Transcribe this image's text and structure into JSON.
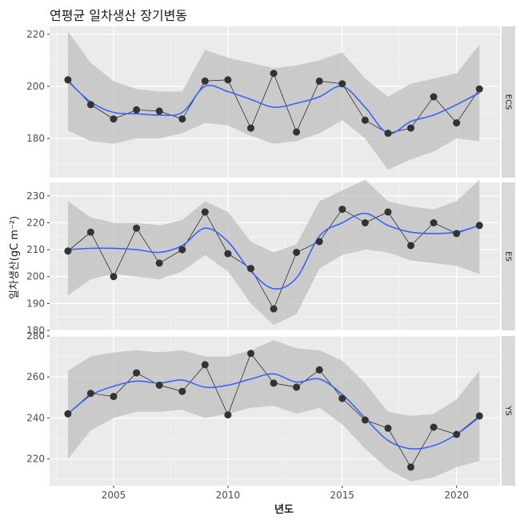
{
  "chart_data": {
    "type": "line",
    "title": "연평균 일차생산 장기변동",
    "xlabel": "년도",
    "ylabel": "일차생산(gC m⁻²)",
    "x_ticks": [
      2005,
      2010,
      2015,
      2020
    ],
    "xlim": [
      2002.2,
      2021.9
    ],
    "grid": true,
    "facets": [
      {
        "strip": "ECS",
        "ylim": [
          165,
          223
        ],
        "y_ticks": [
          180,
          200,
          220
        ],
        "points": [
          [
            2003,
            202.5
          ],
          [
            2004,
            193
          ],
          [
            2005,
            187.5
          ],
          [
            2006,
            191
          ],
          [
            2007,
            190.5
          ],
          [
            2008,
            187.5
          ],
          [
            2009,
            202
          ],
          [
            2010,
            202.5
          ],
          [
            2011,
            184
          ],
          [
            2012,
            205
          ],
          [
            2013,
            182.5
          ],
          [
            2014,
            202
          ],
          [
            2015,
            201
          ],
          [
            2016,
            187
          ],
          [
            2017,
            182
          ],
          [
            2018,
            184
          ],
          [
            2019,
            196
          ],
          [
            2020,
            186
          ],
          [
            2021,
            199
          ]
        ],
        "smooth": [
          [
            2003,
            202
          ],
          [
            2004,
            194
          ],
          [
            2005,
            190
          ],
          [
            2006,
            189.5
          ],
          [
            2007,
            189
          ],
          [
            2008,
            190
          ],
          [
            2009,
            200
          ],
          [
            2010,
            198
          ],
          [
            2011,
            195
          ],
          [
            2012,
            192
          ],
          [
            2013,
            193.5
          ],
          [
            2014,
            196
          ],
          [
            2015,
            200
          ],
          [
            2016,
            192
          ],
          [
            2017,
            182
          ],
          [
            2018,
            186.5
          ],
          [
            2019,
            189
          ],
          [
            2020,
            193
          ],
          [
            2021,
            197.5
          ]
        ],
        "band_upper": [
          [
            2003,
            221
          ],
          [
            2004,
            209
          ],
          [
            2005,
            202
          ],
          [
            2006,
            199
          ],
          [
            2007,
            198
          ],
          [
            2008,
            198
          ],
          [
            2009,
            214
          ],
          [
            2010,
            211
          ],
          [
            2011,
            209
          ],
          [
            2012,
            207
          ],
          [
            2013,
            208
          ],
          [
            2014,
            210
          ],
          [
            2015,
            213
          ],
          [
            2016,
            203
          ],
          [
            2017,
            196
          ],
          [
            2018,
            201
          ],
          [
            2019,
            203
          ],
          [
            2020,
            205
          ],
          [
            2021,
            216
          ]
        ],
        "band_lower": [
          [
            2003,
            183
          ],
          [
            2004,
            179
          ],
          [
            2005,
            178
          ],
          [
            2006,
            180
          ],
          [
            2007,
            180
          ],
          [
            2008,
            182
          ],
          [
            2009,
            186
          ],
          [
            2010,
            185
          ],
          [
            2011,
            181
          ],
          [
            2012,
            178
          ],
          [
            2013,
            179
          ],
          [
            2014,
            182
          ],
          [
            2015,
            187
          ],
          [
            2016,
            180
          ],
          [
            2017,
            168
          ],
          [
            2018,
            172
          ],
          [
            2019,
            175
          ],
          [
            2020,
            180
          ],
          [
            2021,
            179
          ]
        ]
      },
      {
        "strip": "ES",
        "ylim": [
          180,
          235
        ],
        "y_ticks": [
          180,
          190,
          200,
          210,
          220,
          230
        ],
        "points": [
          [
            2003,
            209.5
          ],
          [
            2004,
            216.5
          ],
          [
            2005,
            200
          ],
          [
            2006,
            218
          ],
          [
            2007,
            205
          ],
          [
            2008,
            210
          ],
          [
            2009,
            224
          ],
          [
            2010,
            208.5
          ],
          [
            2011,
            203
          ],
          [
            2012,
            188
          ],
          [
            2013,
            209
          ],
          [
            2014,
            213
          ],
          [
            2015,
            225
          ],
          [
            2016,
            220
          ],
          [
            2017,
            224
          ],
          [
            2018,
            211.5
          ],
          [
            2019,
            220
          ],
          [
            2020,
            216
          ],
          [
            2021,
            219
          ]
        ],
        "smooth": [
          [
            2003,
            210
          ],
          [
            2004,
            210.5
          ],
          [
            2005,
            210.5
          ],
          [
            2006,
            210
          ],
          [
            2007,
            209
          ],
          [
            2008,
            211.5
          ],
          [
            2009,
            218
          ],
          [
            2010,
            213
          ],
          [
            2011,
            202
          ],
          [
            2012,
            195.5
          ],
          [
            2013,
            199.5
          ],
          [
            2014,
            215
          ],
          [
            2015,
            220
          ],
          [
            2016,
            223.5
          ],
          [
            2017,
            219
          ],
          [
            2018,
            216.5
          ],
          [
            2019,
            216
          ],
          [
            2020,
            216.5
          ],
          [
            2021,
            219
          ]
        ],
        "band_upper": [
          [
            2003,
            228
          ],
          [
            2004,
            222
          ],
          [
            2005,
            220
          ],
          [
            2006,
            220
          ],
          [
            2007,
            219
          ],
          [
            2008,
            221
          ],
          [
            2009,
            228
          ],
          [
            2010,
            224
          ],
          [
            2011,
            213
          ],
          [
            2012,
            209
          ],
          [
            2013,
            212
          ],
          [
            2014,
            228
          ],
          [
            2015,
            232
          ],
          [
            2016,
            236
          ],
          [
            2017,
            228
          ],
          [
            2018,
            226
          ],
          [
            2019,
            225
          ],
          [
            2020,
            228
          ],
          [
            2021,
            236
          ]
        ],
        "band_lower": [
          [
            2003,
            193
          ],
          [
            2004,
            199
          ],
          [
            2005,
            201
          ],
          [
            2006,
            200
          ],
          [
            2007,
            199
          ],
          [
            2008,
            202
          ],
          [
            2009,
            208
          ],
          [
            2010,
            202
          ],
          [
            2011,
            190
          ],
          [
            2012,
            182
          ],
          [
            2013,
            186
          ],
          [
            2014,
            203
          ],
          [
            2015,
            208
          ],
          [
            2016,
            210
          ],
          [
            2017,
            209
          ],
          [
            2018,
            206
          ],
          [
            2019,
            205
          ],
          [
            2020,
            204
          ],
          [
            2021,
            201
          ]
        ]
      },
      {
        "strip": "YS",
        "ylim": [
          207,
          280
        ],
        "y_ticks": [
          220,
          240,
          260,
          280
        ],
        "points": [
          [
            2003,
            242
          ],
          [
            2004,
            252
          ],
          [
            2005,
            250.5
          ],
          [
            2006,
            262
          ],
          [
            2007,
            256
          ],
          [
            2008,
            253
          ],
          [
            2009,
            266
          ],
          [
            2010,
            241.5
          ],
          [
            2011,
            271.5
          ],
          [
            2012,
            257
          ],
          [
            2013,
            255
          ],
          [
            2014,
            263.5
          ],
          [
            2015,
            249.5
          ],
          [
            2016,
            239
          ],
          [
            2017,
            235
          ],
          [
            2018,
            216
          ],
          [
            2019,
            235.5
          ],
          [
            2020,
            232
          ],
          [
            2021,
            241
          ]
        ],
        "smooth": [
          [
            2003,
            242
          ],
          [
            2004,
            251
          ],
          [
            2005,
            255.5
          ],
          [
            2006,
            258
          ],
          [
            2007,
            257
          ],
          [
            2008,
            258.5
          ],
          [
            2009,
            255
          ],
          [
            2010,
            256
          ],
          [
            2011,
            259
          ],
          [
            2012,
            261.5
          ],
          [
            2013,
            257.5
          ],
          [
            2014,
            259
          ],
          [
            2015,
            251.5
          ],
          [
            2016,
            240
          ],
          [
            2017,
            229
          ],
          [
            2018,
            225
          ],
          [
            2019,
            226.5
          ],
          [
            2020,
            232
          ],
          [
            2021,
            240.5
          ]
        ],
        "band_upper": [
          [
            2003,
            263
          ],
          [
            2004,
            270
          ],
          [
            2005,
            272
          ],
          [
            2006,
            273
          ],
          [
            2007,
            272
          ],
          [
            2008,
            273
          ],
          [
            2009,
            270
          ],
          [
            2010,
            270
          ],
          [
            2011,
            273
          ],
          [
            2012,
            278
          ],
          [
            2013,
            274
          ],
          [
            2014,
            273
          ],
          [
            2015,
            268
          ],
          [
            2016,
            257
          ],
          [
            2017,
            243
          ],
          [
            2018,
            241
          ],
          [
            2019,
            242
          ],
          [
            2020,
            249
          ],
          [
            2021,
            263
          ]
        ],
        "band_lower": [
          [
            2003,
            220
          ],
          [
            2004,
            234
          ],
          [
            2005,
            240
          ],
          [
            2006,
            243
          ],
          [
            2007,
            243
          ],
          [
            2008,
            244
          ],
          [
            2009,
            240
          ],
          [
            2010,
            242
          ],
          [
            2011,
            245
          ],
          [
            2012,
            246
          ],
          [
            2013,
            242
          ],
          [
            2014,
            245
          ],
          [
            2015,
            237
          ],
          [
            2016,
            225
          ],
          [
            2017,
            215
          ],
          [
            2018,
            209
          ],
          [
            2019,
            211
          ],
          [
            2020,
            216
          ],
          [
            2021,
            219
          ]
        ]
      }
    ]
  }
}
